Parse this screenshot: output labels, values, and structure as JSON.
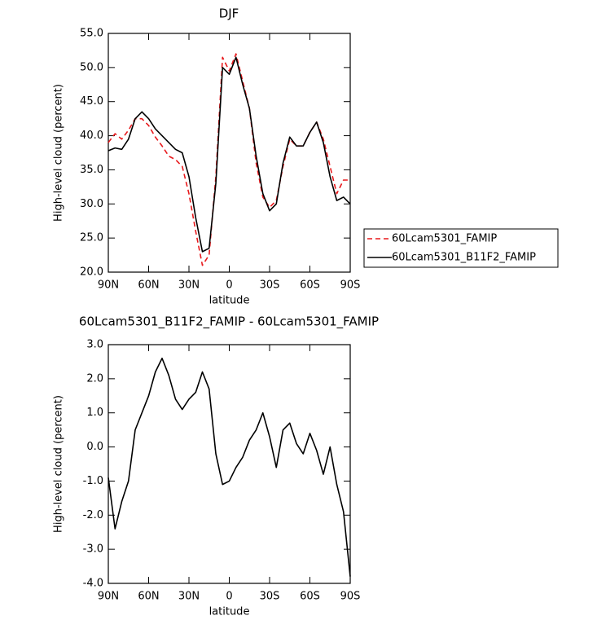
{
  "chart_data": [
    {
      "type": "line",
      "title": "DJF",
      "xlabel": "latitude",
      "ylabel": "High-level cloud (percent)",
      "x": [
        90,
        85,
        80,
        75,
        70,
        65,
        60,
        55,
        50,
        45,
        40,
        35,
        30,
        25,
        20,
        15,
        10,
        5,
        0,
        -5,
        -10,
        -15,
        -20,
        -25,
        -30,
        -35,
        -40,
        -45,
        -50,
        -55,
        -60,
        -65,
        -70,
        -75,
        -80,
        -85,
        -90
      ],
      "xlim": [
        90,
        -90
      ],
      "xticks": [
        {
          "value": 90,
          "label": "90N"
        },
        {
          "value": 60,
          "label": "60N"
        },
        {
          "value": 30,
          "label": "30N"
        },
        0,
        {
          "value": -30,
          "label": "30S"
        },
        {
          "value": -60,
          "label": "60S"
        },
        {
          "value": -90,
          "label": "90S"
        }
      ],
      "ylim": [
        20,
        55
      ],
      "yticks": [
        {
          "value": 20,
          "label": "20.0"
        },
        {
          "value": 25,
          "label": "25.0"
        },
        {
          "value": 30,
          "label": "30.0"
        },
        {
          "value": 35,
          "label": "35.0"
        },
        {
          "value": 40,
          "label": "40.0"
        },
        {
          "value": 45,
          "label": "45.0"
        },
        {
          "value": 50,
          "label": "50.0"
        },
        {
          "value": 55,
          "label": "55.0"
        }
      ],
      "legend": "outside right",
      "series": [
        {
          "name": "60Lcam5301_FAMIP",
          "color": "#e8191c",
          "linestyle": "dashed",
          "values": [
            39.0,
            40.3,
            39.5,
            40.8,
            42.5,
            42.5,
            41.5,
            39.8,
            38.5,
            37.0,
            36.5,
            35.5,
            31.5,
            26.0,
            21.0,
            22.5,
            34.0,
            51.5,
            49.5,
            52.0,
            48.0,
            44.0,
            36.0,
            31.0,
            29.5,
            30.5,
            35.5,
            39.5,
            38.5,
            38.5,
            40.5,
            42.0,
            39.5,
            35.5,
            31.5,
            33.5,
            33.5
          ]
        },
        {
          "name": "60Lcam5301_B11F2_FAMIP",
          "color": "#000000",
          "linestyle": "solid",
          "values": [
            37.8,
            38.2,
            38.0,
            39.5,
            42.5,
            43.5,
            42.5,
            41.0,
            40.0,
            39.0,
            38.0,
            37.5,
            34.0,
            28.0,
            23.0,
            23.5,
            33.0,
            50.0,
            49.0,
            51.5,
            47.5,
            44.0,
            37.0,
            31.5,
            29.0,
            30.0,
            36.0,
            39.8,
            38.5,
            38.5,
            40.5,
            42.0,
            39.0,
            34.0,
            30.5,
            31.0,
            30.0
          ]
        }
      ]
    },
    {
      "type": "line",
      "title": "60Lcam5301_B11F2_FAMIP - 60Lcam5301_FAMIP",
      "xlabel": "latitude",
      "ylabel": "High-level cloud (percent)",
      "x": [
        90,
        85,
        80,
        75,
        70,
        65,
        60,
        55,
        50,
        45,
        40,
        35,
        30,
        25,
        20,
        15,
        10,
        5,
        0,
        -5,
        -10,
        -15,
        -20,
        -25,
        -30,
        -35,
        -40,
        -45,
        -50,
        -55,
        -60,
        -65,
        -70,
        -75,
        -80,
        -85,
        -90
      ],
      "xlim": [
        90,
        -90
      ],
      "xticks": [
        {
          "value": 90,
          "label": "90N"
        },
        {
          "value": 60,
          "label": "60N"
        },
        {
          "value": 30,
          "label": "30N"
        },
        0,
        {
          "value": -30,
          "label": "30S"
        },
        {
          "value": -60,
          "label": "60S"
        },
        {
          "value": -90,
          "label": "90S"
        }
      ],
      "ylim": [
        -4,
        3
      ],
      "yticks": [
        {
          "value": -4,
          "label": "-4.0"
        },
        {
          "value": -3,
          "label": "-3.0"
        },
        {
          "value": -2,
          "label": "-2.0"
        },
        {
          "value": -1,
          "label": "-1.0"
        },
        {
          "value": 0,
          "label": "0.0"
        },
        {
          "value": 1,
          "label": "1.0"
        },
        {
          "value": 2,
          "label": "2.0"
        },
        {
          "value": 3,
          "label": "3.0"
        }
      ],
      "series": [
        {
          "color": "#000000",
          "linestyle": "solid",
          "values": [
            -0.9,
            -2.4,
            -1.6,
            -1.0,
            0.5,
            1.0,
            1.5,
            2.2,
            2.6,
            2.1,
            1.4,
            1.1,
            1.4,
            1.6,
            2.2,
            1.7,
            -0.2,
            -1.1,
            -1.0,
            -0.6,
            -0.3,
            0.2,
            0.5,
            1.0,
            0.3,
            -0.6,
            0.5,
            0.7,
            0.1,
            -0.2,
            0.4,
            -0.1,
            -0.8,
            0.0,
            -1.1,
            -1.9,
            -3.8
          ]
        }
      ]
    }
  ]
}
